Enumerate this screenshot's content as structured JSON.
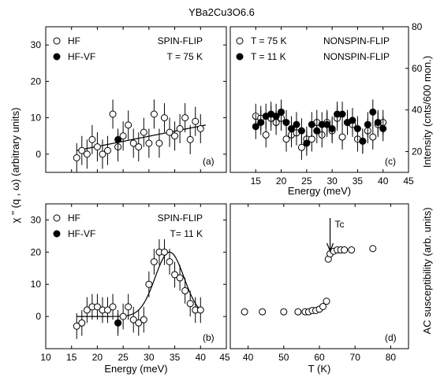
{
  "figure_title": "YBa2Cu3O6.6",
  "left_ylabel": "χ '' (q , ω) (arbitrary units)",
  "panel_a_ylabel_right": "Intensity (cnts/600 mon.)",
  "panel_d_ylabel": "AC susceptibility (arb. units)",
  "chart_data": [
    {
      "id": "a",
      "type": "scatter",
      "panel_tag": "(a)",
      "annotation": [
        "SPIN-FLIP",
        "T = 75 K"
      ],
      "xlabel": "",
      "ylabel": "",
      "xlim": [
        10,
        45
      ],
      "ylim": [
        -5,
        35
      ],
      "yticks": [
        0,
        10,
        20,
        30
      ],
      "xticks": [
        10,
        15,
        20,
        25,
        30,
        35,
        40,
        45
      ],
      "show_x_tick_labels": false,
      "legend_position": "top-left",
      "series": [
        {
          "name": "HF",
          "marker": "open-circle",
          "x": [
            16,
            17,
            18,
            19,
            20,
            21,
            22,
            23,
            24,
            25,
            26,
            27,
            28,
            29,
            30,
            31,
            32,
            33,
            34,
            35,
            36,
            37,
            38,
            39,
            40
          ],
          "y": [
            -1,
            1,
            0,
            4,
            2,
            0,
            1,
            11,
            2,
            5,
            8,
            3,
            2,
            6,
            3,
            11,
            3,
            10,
            6,
            5,
            7,
            10,
            4,
            9,
            7
          ],
          "err": [
            4,
            4,
            4,
            4,
            4,
            4,
            4,
            4,
            4,
            4,
            4,
            4,
            4,
            4,
            4,
            4,
            4,
            4,
            4,
            4,
            4,
            4,
            4,
            4,
            4
          ]
        },
        {
          "name": "HF-VF",
          "marker": "filled-circle",
          "x": [
            24
          ],
          "y": [
            4
          ],
          "err": [
            3
          ]
        }
      ],
      "fit_line": {
        "x": [
          16,
          41
        ],
        "y": [
          1,
          8
        ]
      }
    },
    {
      "id": "b",
      "type": "scatter",
      "panel_tag": "(b)",
      "annotation": [
        "SPIN-FLIP",
        "T= 11 K"
      ],
      "xlabel": "Energy (meV)",
      "ylabel": "",
      "xlim": [
        10,
        45
      ],
      "ylim": [
        -10,
        35
      ],
      "yticks": [
        0,
        10,
        20,
        30
      ],
      "xticks": [
        10,
        15,
        20,
        25,
        30,
        35,
        40,
        45
      ],
      "show_x_tick_labels": true,
      "legend_position": "top-left",
      "series": [
        {
          "name": "HF",
          "marker": "open-circle",
          "x": [
            16,
            17,
            18,
            19,
            20,
            21,
            22,
            23,
            24,
            25,
            26,
            27,
            28,
            29,
            30,
            31,
            32,
            33,
            34,
            35,
            36,
            37,
            38,
            39,
            40
          ],
          "y": [
            -3,
            -2,
            2,
            3,
            3,
            2,
            2,
            3,
            -2,
            0,
            3,
            -1,
            -2,
            -1,
            10,
            17,
            20,
            20,
            17,
            13,
            12,
            8,
            4,
            2,
            2
          ],
          "err": [
            4,
            4,
            4,
            4,
            4,
            4,
            4,
            4,
            4,
            4,
            4,
            4,
            4,
            4,
            4,
            4,
            4,
            4,
            4,
            4,
            4,
            4,
            4,
            4,
            4
          ]
        },
        {
          "name": "HF-VF",
          "marker": "filled-circle",
          "x": [
            24
          ],
          "y": [
            -2
          ],
          "err": [
            3
          ]
        }
      ],
      "fit_curve": {
        "type": "gaussian",
        "baseline": 0,
        "center": 34,
        "amplitude": 20,
        "sigma": 2.8,
        "x_range": [
          16,
          40
        ]
      }
    },
    {
      "id": "c",
      "type": "scatter",
      "panel_tag": "(c)",
      "xlabel": "Energy (meV)",
      "ylabel": "Intensity (cnts/600 mon.)",
      "xlim": [
        10,
        45
      ],
      "ylim": [
        10,
        80
      ],
      "yticks": [
        20,
        40,
        60,
        80
      ],
      "xticks": [
        15,
        20,
        25,
        30,
        35,
        40,
        45
      ],
      "show_x_tick_labels": true,
      "legend_position": "top",
      "series": [
        {
          "name": "T = 75 K",
          "label_suffix": "NONSPIN-FLIP",
          "marker": "open-circle",
          "x": [
            15,
            16,
            17,
            18,
            19,
            20,
            21,
            22,
            23,
            24,
            25,
            26,
            27,
            28,
            29,
            30,
            31,
            32,
            33,
            34,
            35,
            36,
            37,
            38,
            39,
            40
          ],
          "y": [
            37,
            36,
            28,
            36,
            34,
            36,
            26,
            28,
            29,
            22,
            26,
            26,
            34,
            28,
            34,
            30,
            36,
            27,
            34,
            33,
            26,
            25,
            30,
            27,
            33,
            34
          ],
          "err": [
            6,
            6,
            6,
            6,
            6,
            6,
            6,
            6,
            6,
            6,
            6,
            6,
            6,
            6,
            6,
            6,
            6,
            6,
            6,
            6,
            6,
            6,
            6,
            6,
            6,
            6
          ]
        },
        {
          "name": "T = 11 K",
          "label_suffix": "NONSPIN-FLIP",
          "marker": "filled-circle",
          "x": [
            15,
            16,
            17,
            18,
            19,
            20,
            21,
            22,
            23,
            24,
            25,
            26,
            27,
            28,
            29,
            30,
            31,
            32,
            33,
            34,
            35,
            36,
            37,
            38,
            39,
            40
          ],
          "y": [
            32,
            34,
            37,
            38,
            37,
            39,
            34,
            31,
            33,
            30,
            24,
            33,
            30,
            33,
            33,
            31,
            38,
            38,
            34,
            35,
            31,
            25,
            33,
            39,
            34,
            31
          ],
          "err": [
            6,
            6,
            6,
            6,
            6,
            6,
            6,
            6,
            6,
            6,
            6,
            6,
            6,
            6,
            6,
            6,
            6,
            6,
            6,
            6,
            6,
            6,
            6,
            6,
            6,
            6
          ]
        }
      ]
    },
    {
      "id": "d",
      "type": "scatter",
      "panel_tag": "(d)",
      "annotation_tc": "Tc",
      "xlabel": "T (K)",
      "ylabel": "AC susceptibility (arb. units)",
      "xlim": [
        35,
        85
      ],
      "ylim": [
        0,
        1.1
      ],
      "xticks": [
        40,
        50,
        60,
        70,
        80
      ],
      "yticks": [],
      "show_x_tick_labels": true,
      "tc_arrow_x": 63,
      "series": [
        {
          "name": "AC susceptibility",
          "marker": "open-circle",
          "x": [
            39,
            44,
            50,
            54,
            56,
            57,
            58,
            59,
            60,
            61,
            62,
            62.5,
            63,
            64,
            65,
            66,
            67,
            69,
            75
          ],
          "y": [
            0.28,
            0.28,
            0.28,
            0.28,
            0.28,
            0.28,
            0.29,
            0.29,
            0.3,
            0.32,
            0.36,
            0.68,
            0.72,
            0.74,
            0.75,
            0.75,
            0.75,
            0.75,
            0.76
          ]
        }
      ]
    }
  ]
}
